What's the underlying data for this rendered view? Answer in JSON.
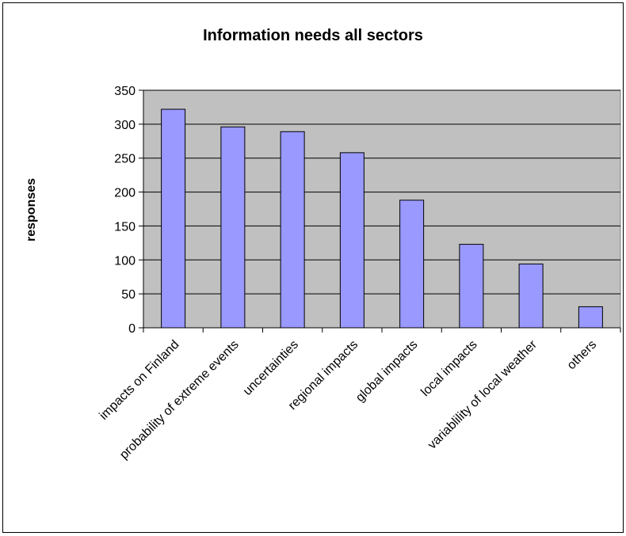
{
  "chart_data": {
    "type": "bar",
    "title": "Information needs all sectors",
    "xlabel": "",
    "ylabel": "responses",
    "categories": [
      "impacts on Finland",
      "probability of extreme events",
      "uncertainties",
      "regional impacts",
      "global impacts",
      "local impacts",
      "variablility of local weather",
      "others"
    ],
    "values": [
      322,
      296,
      289,
      258,
      188,
      123,
      94,
      31
    ],
    "ylim": [
      0,
      350
    ],
    "yticks": [
      "0",
      "50",
      "100",
      "150",
      "200",
      "250",
      "300",
      "350"
    ],
    "grid": "horizontal",
    "legend": "none",
    "colors": {
      "plot_area": "#c0c0c0",
      "bar_fill": "#9999ff",
      "bar_stroke": "#000000",
      "gridline": "#000000"
    }
  }
}
